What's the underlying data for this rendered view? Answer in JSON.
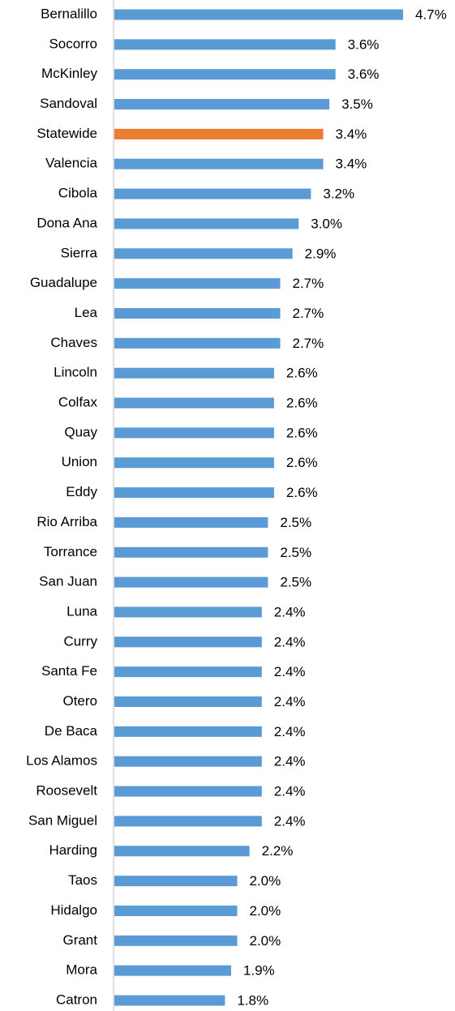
{
  "chart_data": {
    "type": "bar",
    "orientation": "horizontal",
    "categories": [
      "Bernalillo",
      "Socorro",
      "McKinley",
      "Sandoval",
      "Statewide",
      "Valencia",
      "Cibola",
      "Dona Ana",
      "Sierra",
      "Guadalupe",
      "Lea",
      "Chaves",
      "Lincoln",
      "Colfax",
      "Quay",
      "Union",
      "Eddy",
      "Rio Arriba",
      "Torrance",
      "San Juan",
      "Luna",
      "Curry",
      "Santa Fe",
      "Otero",
      "De Baca",
      "Los Alamos",
      "Roosevelt",
      "San Miguel",
      "Harding",
      "Taos",
      "Hidalgo",
      "Grant",
      "Mora",
      "Catron"
    ],
    "values": [
      4.7,
      3.6,
      3.6,
      3.5,
      3.4,
      3.4,
      3.2,
      3.0,
      2.9,
      2.7,
      2.7,
      2.7,
      2.6,
      2.6,
      2.6,
      2.6,
      2.6,
      2.5,
      2.5,
      2.5,
      2.4,
      2.4,
      2.4,
      2.4,
      2.4,
      2.4,
      2.4,
      2.4,
      2.2,
      2.0,
      2.0,
      2.0,
      1.9,
      1.8
    ],
    "value_labels": [
      "4.7%",
      "3.6%",
      "3.6%",
      "3.5%",
      "3.4%",
      "3.4%",
      "3.2%",
      "3.0%",
      "2.9%",
      "2.7%",
      "2.7%",
      "2.7%",
      "2.6%",
      "2.6%",
      "2.6%",
      "2.6%",
      "2.6%",
      "2.5%",
      "2.5%",
      "2.5%",
      "2.4%",
      "2.4%",
      "2.4%",
      "2.4%",
      "2.4%",
      "2.4%",
      "2.4%",
      "2.4%",
      "2.2%",
      "2.0%",
      "2.0%",
      "2.0%",
      "1.9%",
      "1.8%"
    ],
    "colors": [
      "#5b9bd5",
      "#5b9bd5",
      "#5b9bd5",
      "#5b9bd5",
      "#ed7d31",
      "#5b9bd5",
      "#5b9bd5",
      "#5b9bd5",
      "#5b9bd5",
      "#5b9bd5",
      "#5b9bd5",
      "#5b9bd5",
      "#5b9bd5",
      "#5b9bd5",
      "#5b9bd5",
      "#5b9bd5",
      "#5b9bd5",
      "#5b9bd5",
      "#5b9bd5",
      "#5b9bd5",
      "#5b9bd5",
      "#5b9bd5",
      "#5b9bd5",
      "#5b9bd5",
      "#5b9bd5",
      "#5b9bd5",
      "#5b9bd5",
      "#5b9bd5",
      "#5b9bd5",
      "#5b9bd5",
      "#5b9bd5",
      "#5b9bd5",
      "#5b9bd5",
      "#5b9bd5"
    ]
  }
}
